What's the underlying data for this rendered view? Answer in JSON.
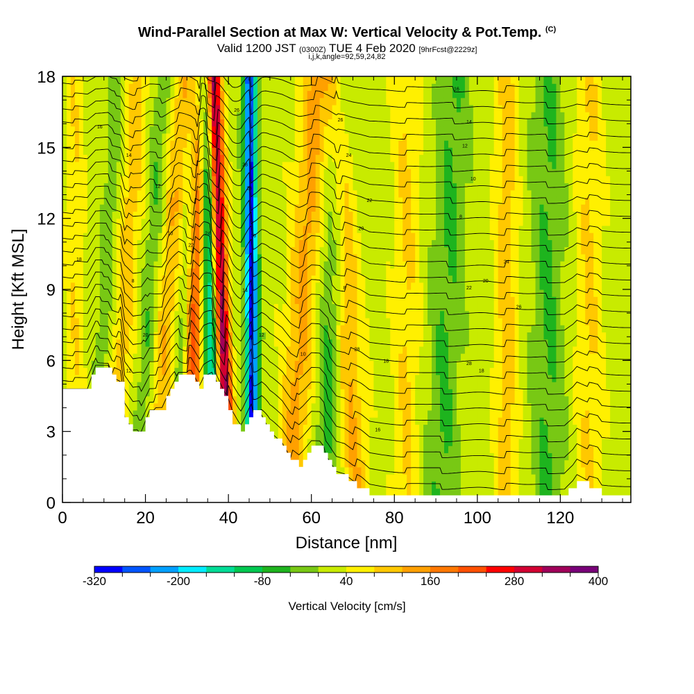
{
  "header": {
    "title": "Wind-Parallel Section at Max W: Vertical Velocity & Pot.Temp.",
    "copyright": "(C)",
    "valid_main": "Valid 1200 JST",
    "valid_utc": "(0300Z)",
    "valid_date": "TUE 4 Feb 2020",
    "forecast": "[9hrFcst@2229z]",
    "grid_info": "i,j,k,angle=92,59,24,82"
  },
  "chart_data": {
    "type": "heatmap",
    "xlabel": "Distance [nm]",
    "ylabel": "Height [Kft MSL]",
    "xlim": [
      0,
      137
    ],
    "ylim": [
      0,
      18
    ],
    "x_ticks": [
      0,
      20,
      40,
      60,
      80,
      100,
      120
    ],
    "y_ticks": [
      0,
      3,
      6,
      9,
      12,
      15,
      18
    ],
    "colorbar": {
      "label": "Vertical Velocity [cm/s]",
      "min": -320,
      "max": 400,
      "tick_values": [
        -320,
        -200,
        -80,
        40,
        160,
        280,
        400
      ],
      "colors": [
        "#0000ff",
        "#0055ff",
        "#00a0ff",
        "#00ecff",
        "#00dc96",
        "#00c850",
        "#1eb41e",
        "#78c814",
        "#c8eb00",
        "#fff000",
        "#ffc800",
        "#ffa000",
        "#ff7800",
        "#ff5000",
        "#ff0000",
        "#d20032",
        "#a0005a",
        "#780078"
      ]
    },
    "terrain_profile": [
      [
        0,
        4.8
      ],
      [
        6,
        4.8
      ],
      [
        8,
        5.8
      ],
      [
        11,
        5.8
      ],
      [
        12,
        5.3
      ],
      [
        14,
        5.1
      ],
      [
        15,
        3.5
      ],
      [
        17,
        2.9
      ],
      [
        19,
        3.0
      ],
      [
        21,
        3.9
      ],
      [
        24,
        3.9
      ],
      [
        26,
        4.8
      ],
      [
        28,
        5.5
      ],
      [
        31,
        5.5
      ],
      [
        33,
        4.9
      ],
      [
        34,
        5.3
      ],
      [
        36,
        5.5
      ],
      [
        38,
        4.8
      ],
      [
        40,
        4.0
      ],
      [
        41,
        3.4
      ],
      [
        43,
        2.9
      ],
      [
        46,
        3.8
      ],
      [
        48,
        3.7
      ],
      [
        50,
        3.0
      ],
      [
        53,
        2.5
      ],
      [
        55,
        1.9
      ],
      [
        57,
        1.6
      ],
      [
        58,
        1.8
      ],
      [
        60,
        2.3
      ],
      [
        62,
        2.3
      ],
      [
        64,
        1.8
      ],
      [
        66,
        1.2
      ],
      [
        68,
        1.1
      ],
      [
        70,
        0.8
      ],
      [
        72,
        0.6
      ],
      [
        74,
        0.3
      ],
      [
        121,
        0.3
      ],
      [
        123,
        0.7
      ],
      [
        124,
        1.0
      ],
      [
        125,
        0.9
      ],
      [
        127,
        0.7
      ],
      [
        129,
        0.6
      ],
      [
        130,
        0.3
      ],
      [
        137,
        0.3
      ]
    ],
    "updraft_bands": [
      {
        "x_base": 3,
        "slope": 0.0,
        "width": 2.0,
        "w": 50
      },
      {
        "x_base": 12,
        "slope": 0.35,
        "width": 2.5,
        "w": 80
      },
      {
        "x_base": 22,
        "slope": 0.4,
        "width": 2.5,
        "w": 90
      },
      {
        "x_base": 30,
        "slope": 0.2,
        "width": 2.0,
        "w": 220
      },
      {
        "x_base": 40,
        "slope": -0.2,
        "width": 1.8,
        "w": 320
      },
      {
        "x_base": 55,
        "slope": 0.35,
        "width": 3.5,
        "w": 110
      },
      {
        "x_base": 71,
        "slope": -0.3,
        "width": 3.0,
        "w": 100
      },
      {
        "x_base": 83,
        "slope": 0.0,
        "width": 3.0,
        "w": 60
      },
      {
        "x_base": 107,
        "slope": 0.0,
        "width": 2.5,
        "w": 80
      },
      {
        "x_base": 127,
        "slope": 0.0,
        "width": 3.0,
        "w": 60
      }
    ],
    "downdraft_bands": [
      {
        "x_base": 8,
        "slope": 0.3,
        "width": 2.0,
        "w": -50
      },
      {
        "x_base": 18,
        "slope": 0.35,
        "width": 2.0,
        "w": -60
      },
      {
        "x_base": 27,
        "slope": 0.35,
        "width": 2.0,
        "w": -80
      },
      {
        "x_base": 37,
        "slope": -0.15,
        "width": 1.8,
        "w": -200
      },
      {
        "x_base": 46,
        "slope": -0.05,
        "width": 1.6,
        "w": -320
      },
      {
        "x_base": 63,
        "slope": 0.2,
        "width": 3.0,
        "w": -80
      },
      {
        "x_base": 91,
        "slope": 0.2,
        "width": 4.0,
        "w": -70
      },
      {
        "x_base": 117,
        "slope": 0.0,
        "width": 4.0,
        "w": -70
      }
    ],
    "contour_labels": [
      "18",
      "16",
      "14",
      "12",
      "10",
      "8",
      "20",
      "22",
      "24",
      "26",
      "28"
    ]
  }
}
